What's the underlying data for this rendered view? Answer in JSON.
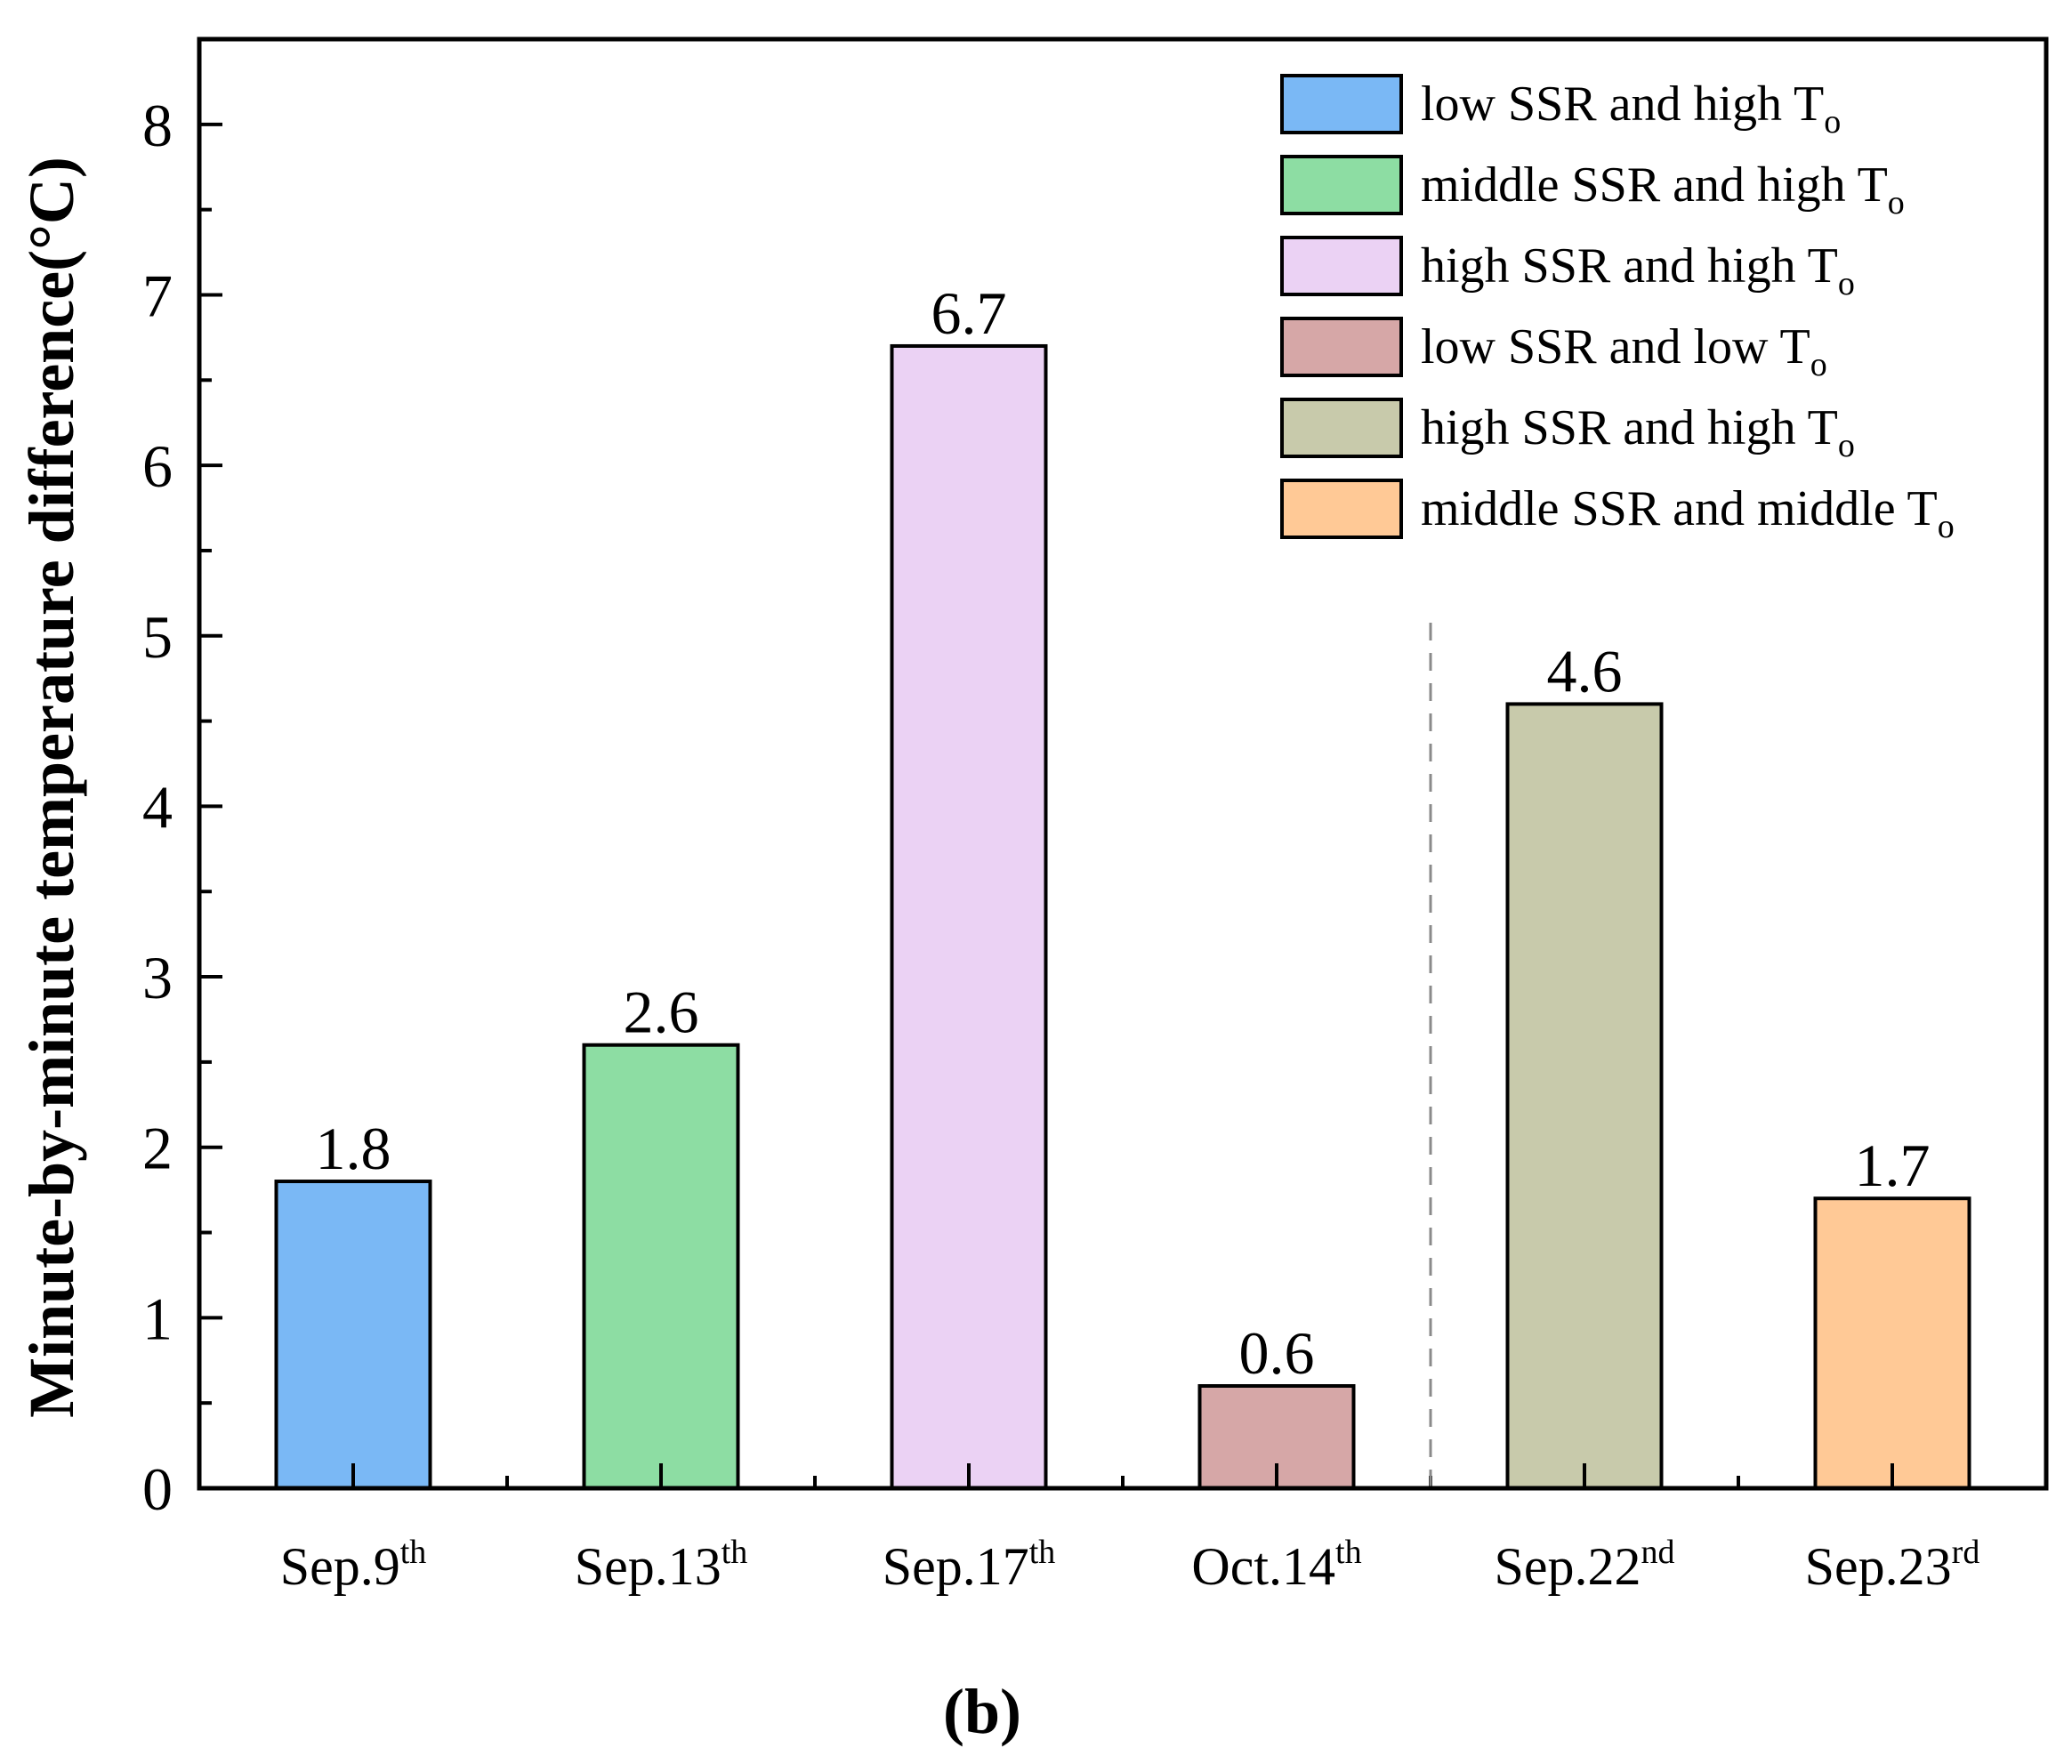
{
  "chart_data": {
    "type": "bar",
    "ylabel": "Minute-by-minute temperature difference(°C)",
    "ylim": [
      0,
      8.5
    ],
    "yticks": [
      "0",
      "1",
      "2",
      "3",
      "4",
      "5",
      "6",
      "7",
      "8"
    ],
    "categories": [
      {
        "base": "Sep.9",
        "sup": "th"
      },
      {
        "base": "Sep.13",
        "sup": "th"
      },
      {
        "base": "Sep.17",
        "sup": "th"
      },
      {
        "base": "Oct.14",
        "sup": "th"
      },
      {
        "base": "Sep.22",
        "sup": "nd"
      },
      {
        "base": "Sep.23",
        "sup": "rd"
      }
    ],
    "values": [
      1.8,
      2.6,
      6.7,
      0.6,
      4.6,
      1.7
    ],
    "data_labels": [
      "1.8",
      "2.6",
      "6.7",
      "0.6",
      "4.6",
      "1.7"
    ],
    "colors": [
      "#7ab8f5",
      "#8ddda3",
      "#ebd2f4",
      "#d6a7a7",
      "#c8caab",
      "#ffc996"
    ],
    "legend": [
      {
        "text": "low SSR and high T",
        "sub": "o"
      },
      {
        "text": "middle SSR and high T",
        "sub": "o"
      },
      {
        "text": "high SSR and high T",
        "sub": "o"
      },
      {
        "text": "low SSR and low T",
        "sub": "o"
      },
      {
        "text": "high SSR and high T",
        "sub": "o"
      },
      {
        "text": "middle SSR and middle T",
        "sub": "o"
      }
    ],
    "legend_position": "top-right",
    "divider_after_category": 4,
    "panel_label": "(b)"
  }
}
